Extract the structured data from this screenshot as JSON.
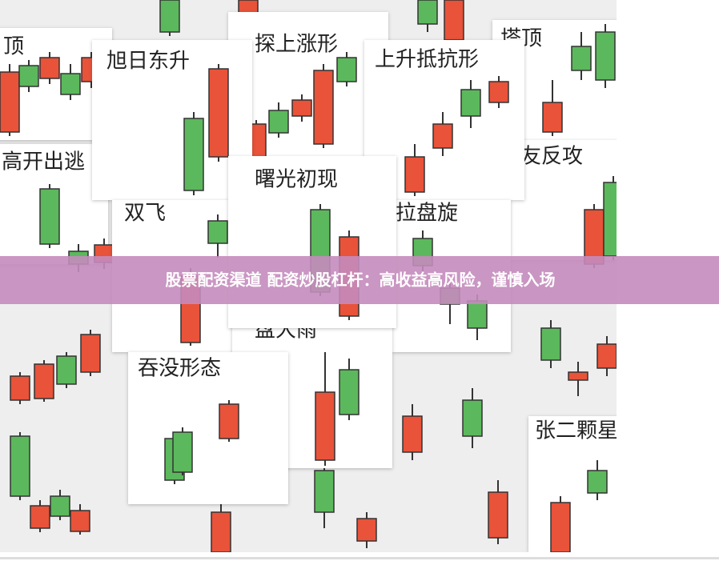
{
  "banner": {
    "text": "股票配资渠道 配资炒股杠杆：高收益高风险，谨慎入场"
  },
  "cards": [
    {
      "label": "顶"
    },
    {
      "label": "塔顶"
    },
    {
      "label": "高开出逃"
    },
    {
      "label": "友反攻"
    },
    {
      "label": "探上涨形"
    },
    {
      "label": "旭日东升"
    },
    {
      "label": "上升抵抗形"
    },
    {
      "label": "双飞"
    },
    {
      "label": "拉盘旋"
    },
    {
      "label": "盘大雨"
    },
    {
      "label": "吞没形态"
    },
    {
      "label": "曙光初现"
    },
    {
      "label": "张二颗星"
    }
  ]
}
